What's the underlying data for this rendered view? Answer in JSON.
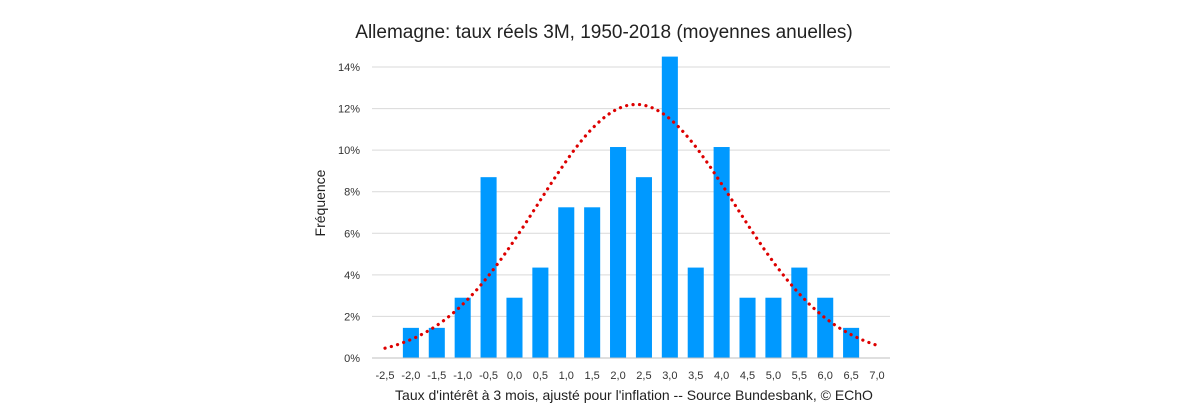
{
  "chart_data": {
    "type": "bar",
    "title": "Allemagne: taux réels 3M, 1950-2018 (moyennes anuelles)",
    "xlabel": "Taux d'intérêt à 3 mois, ajusté pour l'inflation -- Source Bundesbank, © EChO",
    "ylabel": "Fréquence",
    "categories": [
      "-2,5",
      "-2,0",
      "-1,5",
      "-1,0",
      "-0,5",
      "0,0",
      "0,5",
      "1,0",
      "1,5",
      "2,0",
      "2,5",
      "3,0",
      "3,5",
      "4,0",
      "4,5",
      "5,0",
      "5,5",
      "6,0",
      "6,5",
      "7,0"
    ],
    "x_numeric": [
      -2.5,
      -2.0,
      -1.5,
      -1.0,
      -0.5,
      0.0,
      0.5,
      1.0,
      1.5,
      2.0,
      2.5,
      3.0,
      3.5,
      4.0,
      4.5,
      5.0,
      5.5,
      6.0,
      6.5,
      7.0
    ],
    "values": [
      0,
      1.45,
      1.45,
      2.9,
      8.7,
      2.9,
      4.35,
      7.25,
      7.25,
      10.15,
      8.7,
      14.5,
      4.35,
      10.15,
      2.9,
      2.9,
      4.35,
      2.9,
      1.45,
      0
    ],
    "series": [
      {
        "type": "bar",
        "color": "#0099ff"
      },
      {
        "type": "line",
        "style": "dotted",
        "color": "#dd0000",
        "curve": "normal",
        "mean": 2.35,
        "std": 1.9
      }
    ],
    "ylim": [
      0,
      14
    ],
    "yticks": [
      "0%",
      "2%",
      "4%",
      "6%",
      "8%",
      "10%",
      "12%",
      "14%"
    ],
    "ytick_values": [
      0,
      2,
      4,
      6,
      8,
      10,
      12,
      14
    ],
    "grid": "horizontal",
    "legend": "none"
  }
}
